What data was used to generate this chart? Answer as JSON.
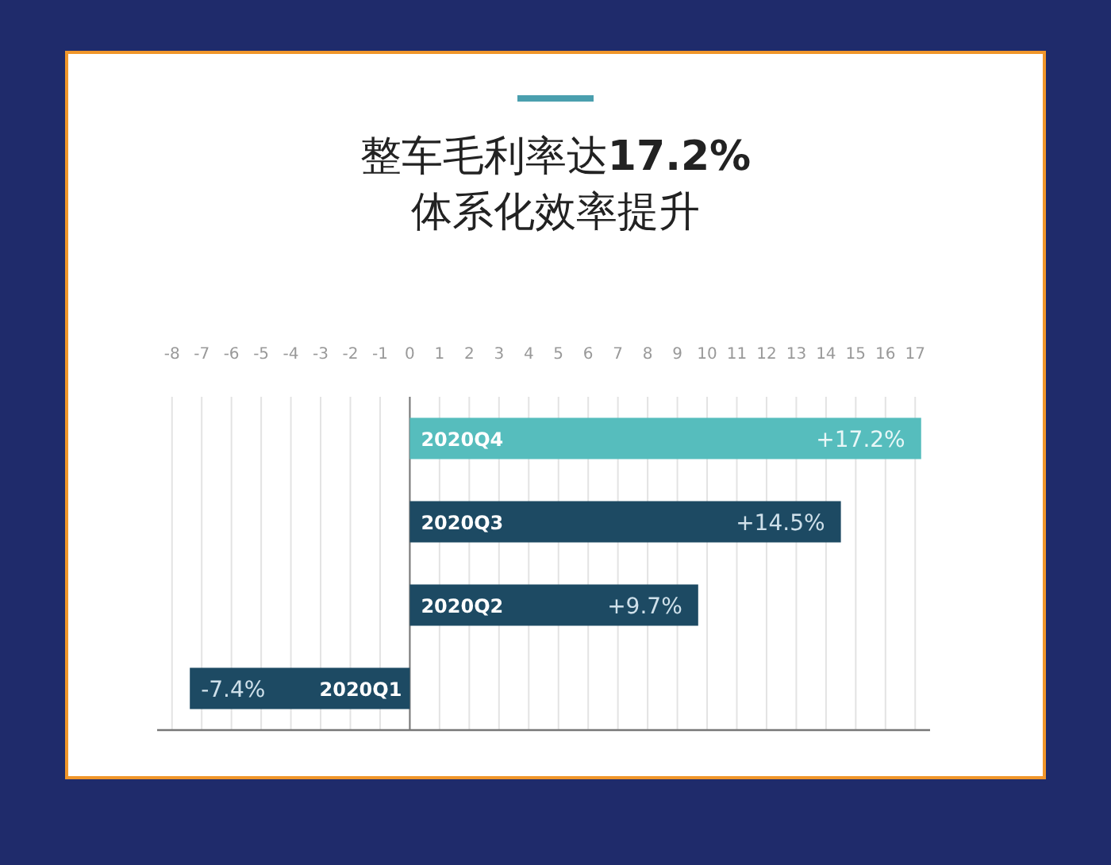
{
  "chart_data": {
    "type": "bar",
    "orientation": "horizontal",
    "title": "整车毛利率达**17.2%**",
    "subtitle": "体系化效率提升",
    "categories": [
      "2020Q4",
      "2020Q3",
      "2020Q2",
      "2020Q1"
    ],
    "values": [
      17.2,
      14.5,
      9.7,
      -7.4
    ],
    "value_labels": [
      "+17.2%",
      "+14.5%",
      "+9.7%",
      "-7.4%"
    ],
    "colors": [
      "#56bdbd",
      "#1d4a63",
      "#1d4a63",
      "#1d4a63"
    ],
    "xlim": [
      -8.5,
      17.5
    ],
    "xticks": [
      -8,
      -7,
      -6,
      -5,
      -4,
      -3,
      -2,
      -1,
      0,
      1,
      2,
      3,
      4,
      5,
      6,
      7,
      8,
      9,
      10,
      11,
      12,
      13,
      14,
      15,
      16,
      17
    ],
    "grid": "x"
  }
}
